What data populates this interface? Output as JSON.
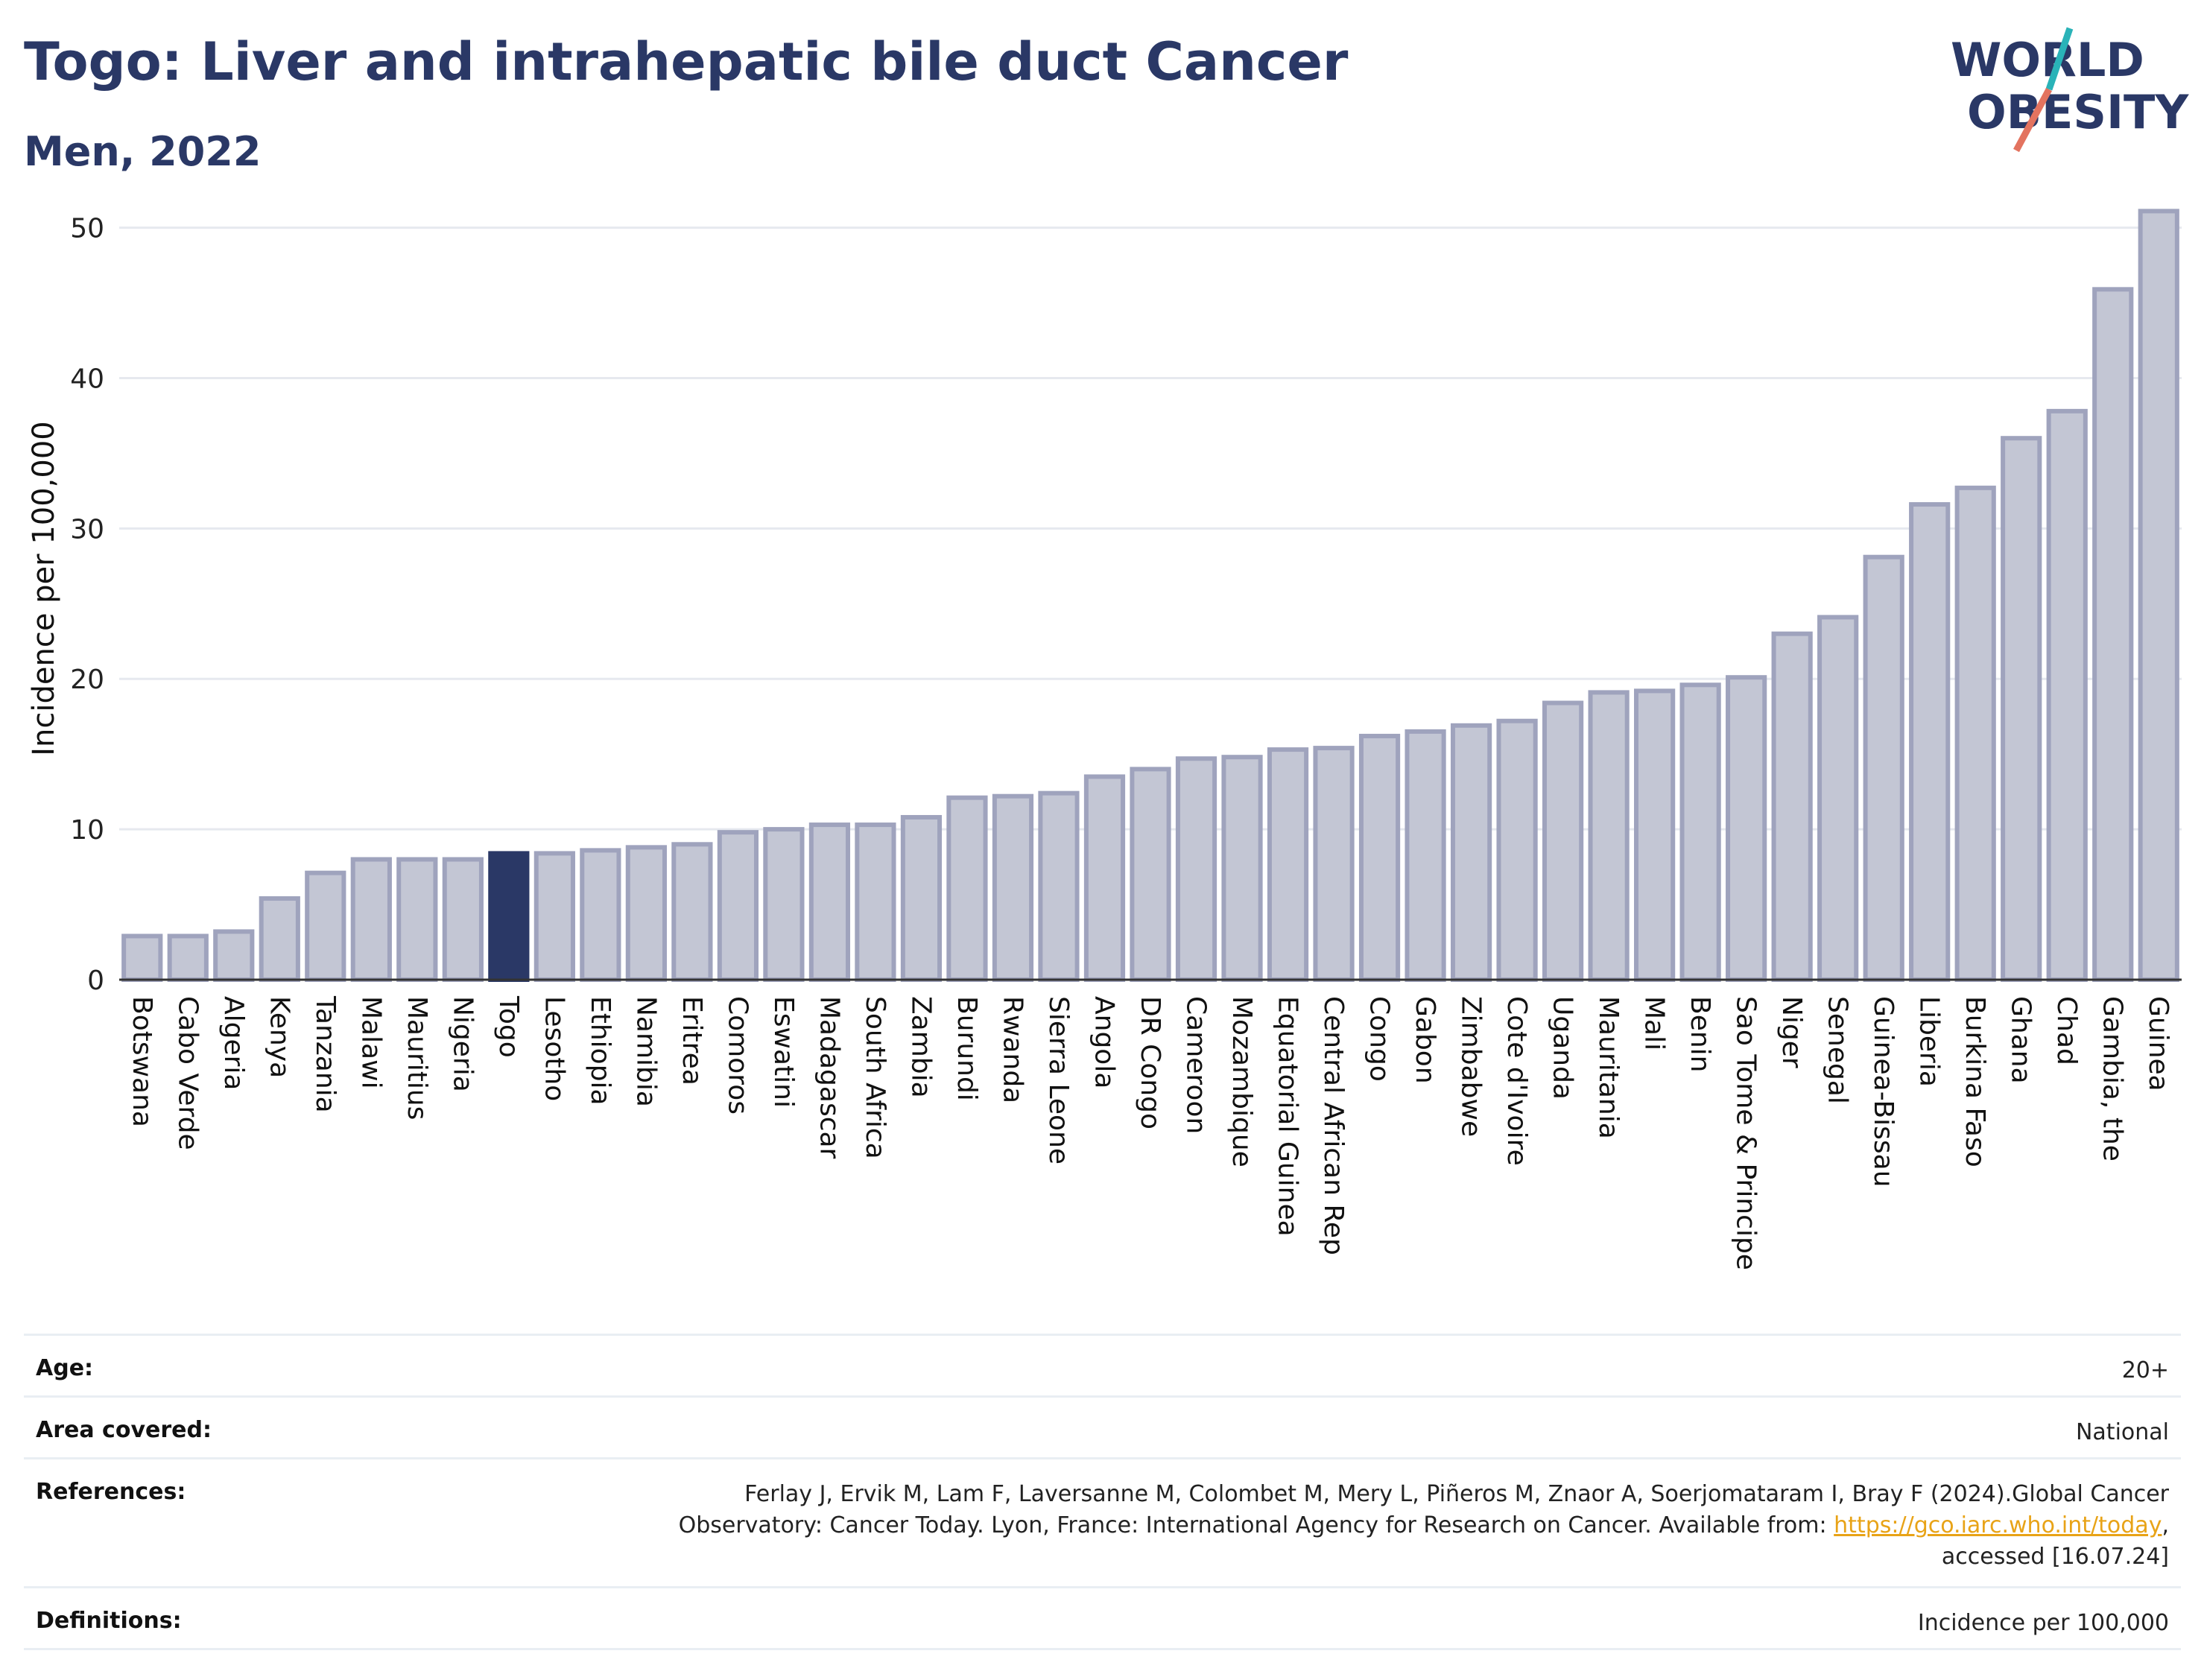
{
  "header": {
    "title": "Togo: Liver and intrahepatic bile duct Cancer",
    "subtitle": "Men, 2022"
  },
  "logo": {
    "line1": "WORLD",
    "line2": "OBESITY",
    "name": "world-obesity-logo"
  },
  "colors": {
    "bar": "#c3c6d4",
    "bar_edge": "#9fa3bd",
    "highlight": "#2a3866",
    "title": "#2a3866",
    "grid": "#e6e9ef"
  },
  "chart_data": {
    "type": "bar",
    "ylabel": "Incidence per 100,000",
    "ylim": [
      0,
      53
    ],
    "yticks": [
      0,
      10,
      20,
      30,
      40,
      50
    ],
    "grid": true,
    "highlight": "Togo",
    "categories": [
      "Botswana",
      "Cabo Verde",
      "Algeria",
      "Kenya",
      "Tanzania",
      "Malawi",
      "Mauritius",
      "Nigeria",
      "Togo",
      "Lesotho",
      "Ethiopia",
      "Namibia",
      "Eritrea",
      "Comoros",
      "Eswatini",
      "Madagascar",
      "South Africa",
      "Zambia",
      "Burundi",
      "Rwanda",
      "Sierra Leone",
      "Angola",
      "DR Congo",
      "Cameroon",
      "Mozambique",
      "Equatorial Guinea",
      "Central African Rep",
      "Congo",
      "Gabon",
      "Zimbabwe",
      "Cote d'Ivoire",
      "Uganda",
      "Mauritania",
      "Mali",
      "Benin",
      "Sao Tome & Principe",
      "Niger",
      "Senegal",
      "Guinea-Bissau",
      "Liberia",
      "Burkina Faso",
      "Ghana",
      "Chad",
      "Gambia, the",
      "Guinea"
    ],
    "values": [
      2.9,
      2.9,
      3.2,
      5.4,
      7.1,
      8.0,
      8.0,
      8.0,
      8.4,
      8.4,
      8.6,
      8.8,
      9.0,
      9.8,
      10.0,
      10.3,
      10.3,
      10.8,
      12.1,
      12.2,
      12.4,
      13.5,
      14.0,
      14.7,
      14.8,
      15.3,
      15.4,
      16.2,
      16.5,
      16.9,
      17.2,
      18.4,
      19.1,
      19.2,
      19.6,
      20.1,
      23.0,
      24.1,
      28.1,
      31.6,
      32.7,
      36.0,
      37.8,
      45.9,
      51.1
    ]
  },
  "info": {
    "age_label": "Age:",
    "age_value": "20+",
    "area_label": "Area covered:",
    "area_value": "National",
    "ref_label": "References:",
    "ref_text_1": "Ferlay J, Ervik M, Lam F, Laversanne M, Colombet M, Mery L, Piñeros M, Znaor A, Soerjomataram I, Bray F (2024).Global Cancer",
    "ref_text_2": "Observatory: Cancer Today. Lyon, France: International Agency for Research on Cancer. Available from: ",
    "ref_link": "https://gco.iarc.who.int/today",
    "ref_text_3": ",",
    "ref_text_4": "accessed [16.07.24]",
    "def_label": "Definitions:",
    "def_value": "Incidence per 100,000"
  }
}
